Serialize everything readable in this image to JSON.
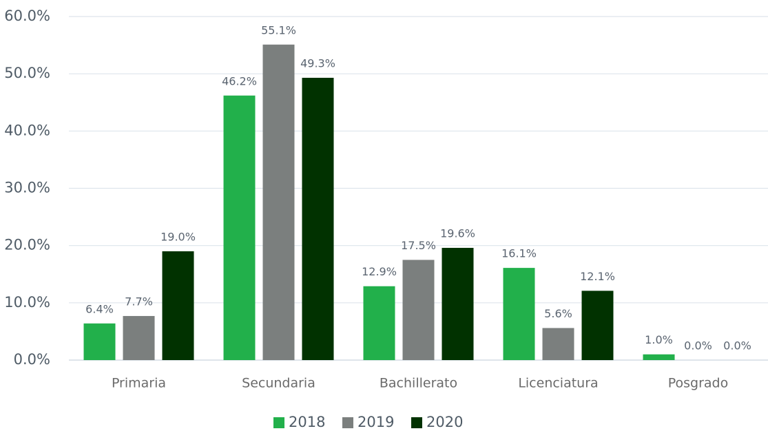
{
  "chart_data": {
    "type": "bar",
    "categories": [
      "Primaria",
      "Secundaria",
      "Bachillerato",
      "Licenciatura",
      "Posgrado"
    ],
    "series": [
      {
        "name": "2018",
        "color": "#22b04b",
        "values": [
          6.4,
          46.2,
          12.9,
          16.1,
          1.0
        ],
        "value_labels": [
          "6.4%",
          "46.2%",
          "12.9%",
          "16.1%",
          "1.0%"
        ]
      },
      {
        "name": "2019",
        "color": "#7b7f7e",
        "values": [
          7.7,
          55.1,
          17.5,
          5.6,
          0.0
        ],
        "value_labels": [
          "7.7%",
          "55.1%",
          "17.5%",
          "5.6%",
          "0.0%"
        ]
      },
      {
        "name": "2020",
        "color": "#013200",
        "values": [
          19.0,
          49.3,
          19.6,
          12.1,
          0.0
        ],
        "value_labels": [
          "19.0%",
          "49.3%",
          "19.6%",
          "12.1%",
          "0.0%"
        ]
      }
    ],
    "ylim": [
      0,
      60
    ],
    "yticks": [
      {
        "value": 0,
        "label": "0.0%"
      },
      {
        "value": 10,
        "label": "10.0%"
      },
      {
        "value": 20,
        "label": "20.0%"
      },
      {
        "value": 30,
        "label": "30.0%"
      },
      {
        "value": 40,
        "label": "40.0%"
      },
      {
        "value": 50,
        "label": "50.0%"
      },
      {
        "value": 60,
        "label": "60.0%"
      }
    ],
    "grid": true,
    "legend": "bottom"
  }
}
